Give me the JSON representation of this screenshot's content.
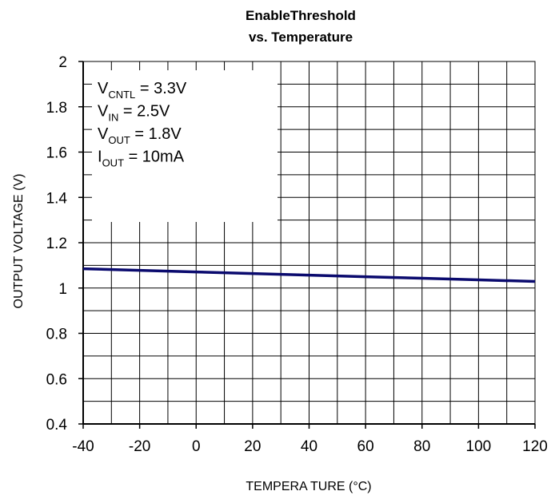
{
  "chart_data": {
    "type": "line",
    "title": [
      "EnableThreshold",
      "vs. Temperature"
    ],
    "xlabel": "TEMPERA TURE (°C)",
    "ylabel": "OUTPUT VOLTAGE (V)",
    "xlim": [
      -40,
      120
    ],
    "ylim": [
      0.4,
      2
    ],
    "x_ticks": [
      "-40",
      "-20",
      "0",
      "20",
      "40",
      "60",
      "80",
      "100",
      "120"
    ],
    "y_ticks": [
      "2",
      "1.8",
      "1.6",
      "1.4",
      "1.2",
      "1",
      "0.8",
      "0.6",
      "0.4"
    ],
    "x_tick_values": [
      -40,
      -20,
      0,
      20,
      40,
      60,
      80,
      100,
      120
    ],
    "y_tick_values": [
      2,
      1.8,
      1.6,
      1.4,
      1.2,
      1,
      0.8,
      0.6,
      0.4
    ],
    "grid": true,
    "series": [
      {
        "color": "#0a0a6e",
        "x": [
          -40,
          -20,
          0,
          20,
          40,
          60,
          80,
          100,
          120
        ],
        "y": [
          1.085,
          1.078,
          1.071,
          1.064,
          1.057,
          1.05,
          1.043,
          1.036,
          1.029
        ]
      }
    ],
    "conditions": [
      {
        "main": "V",
        "sub": "CNTL",
        "rest": " = 3.3V"
      },
      {
        "main": "V",
        "sub": "IN",
        "rest": " = 2.5V"
      },
      {
        "main": "V",
        "sub": "OUT",
        "rest": " = 1.8V"
      },
      {
        "main": "I",
        "sub": "OUT",
        "rest": " = 10mA"
      }
    ]
  }
}
